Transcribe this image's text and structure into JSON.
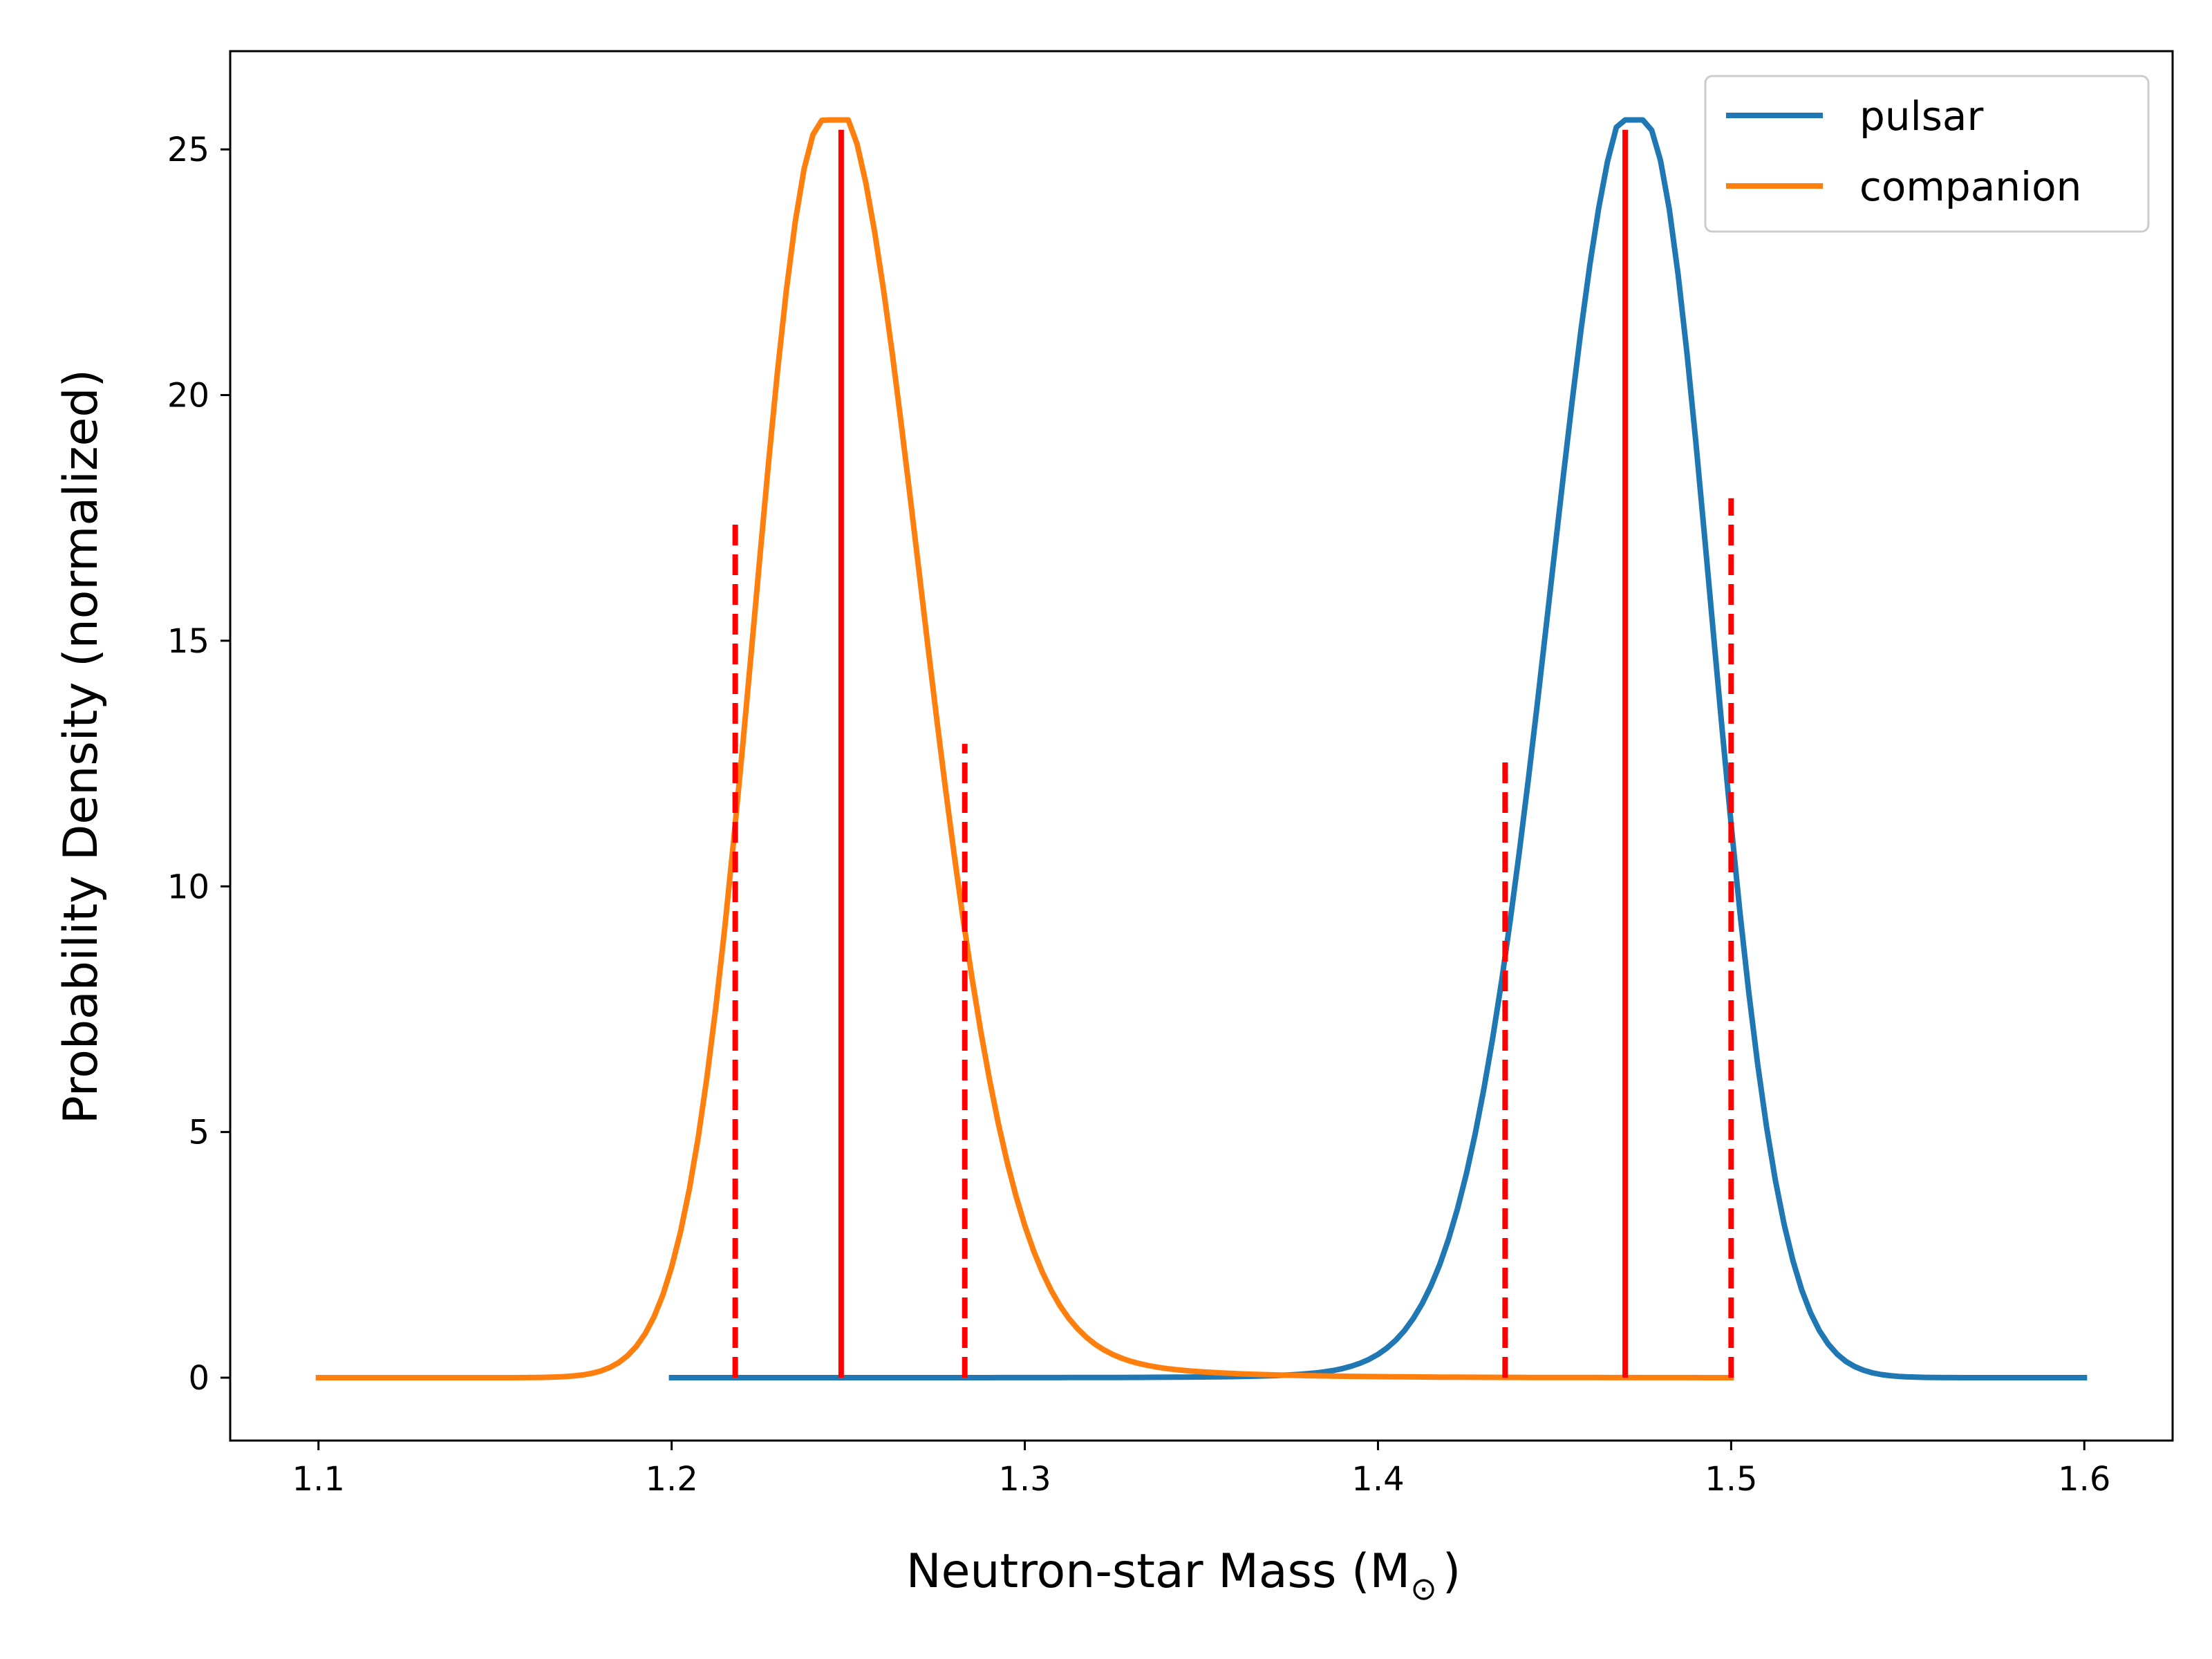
{
  "chart_data": {
    "type": "line",
    "title": "",
    "xlabel": "Neutron-star Mass (M",
    "xlabel_sub": "⊙",
    "xlabel_close": ")",
    "ylabel": "Probability Density (normalized)",
    "xlim": [
      1.075,
      1.625
    ],
    "ylim": [
      -1.28,
      27.0
    ],
    "x_ticks": [
      1.1,
      1.2,
      1.3,
      1.4,
      1.5,
      1.6
    ],
    "x_tick_labels": [
      "1.1",
      "1.2",
      "1.3",
      "1.4",
      "1.5",
      "1.6"
    ],
    "y_ticks": [
      0,
      5,
      10,
      15,
      20,
      25
    ],
    "y_tick_labels": [
      "0",
      "5",
      "10",
      "15",
      "20",
      "25"
    ],
    "legend_position": "top-right",
    "series": [
      {
        "name": "pulsar",
        "color": "#1f77b4",
        "x_range": [
          1.2,
          1.6
        ],
        "peak_x": 1.475,
        "peak_y": 25.6,
        "sigma_left": 0.0255,
        "sigma_right": 0.0195,
        "skew_shape": "left-tail"
      },
      {
        "name": "companion",
        "color": "#ff7f0e",
        "x_range": [
          1.1,
          1.5
        ],
        "peak_x": 1.243,
        "peak_y": 25.6,
        "sigma_left": 0.0195,
        "sigma_right": 0.0265,
        "skew_shape": "right-tail"
      }
    ],
    "vlines": [
      {
        "x": 1.248,
        "y_max": 25.4,
        "style": "solid",
        "color": "#ff0000",
        "ref": "companion median"
      },
      {
        "x": 1.218,
        "y_max": 17.4,
        "style": "dashed",
        "color": "#ff0000",
        "ref": "companion lower"
      },
      {
        "x": 1.283,
        "y_max": 12.9,
        "style": "dashed",
        "color": "#ff0000",
        "ref": "companion upper"
      },
      {
        "x": 1.47,
        "y_max": 25.4,
        "style": "solid",
        "color": "#ff0000",
        "ref": "pulsar median"
      },
      {
        "x": 1.436,
        "y_max": 12.6,
        "style": "dashed",
        "color": "#ff0000",
        "ref": "pulsar lower"
      },
      {
        "x": 1.5,
        "y_max": 17.9,
        "style": "dashed",
        "color": "#ff0000",
        "ref": "pulsar upper"
      }
    ]
  }
}
